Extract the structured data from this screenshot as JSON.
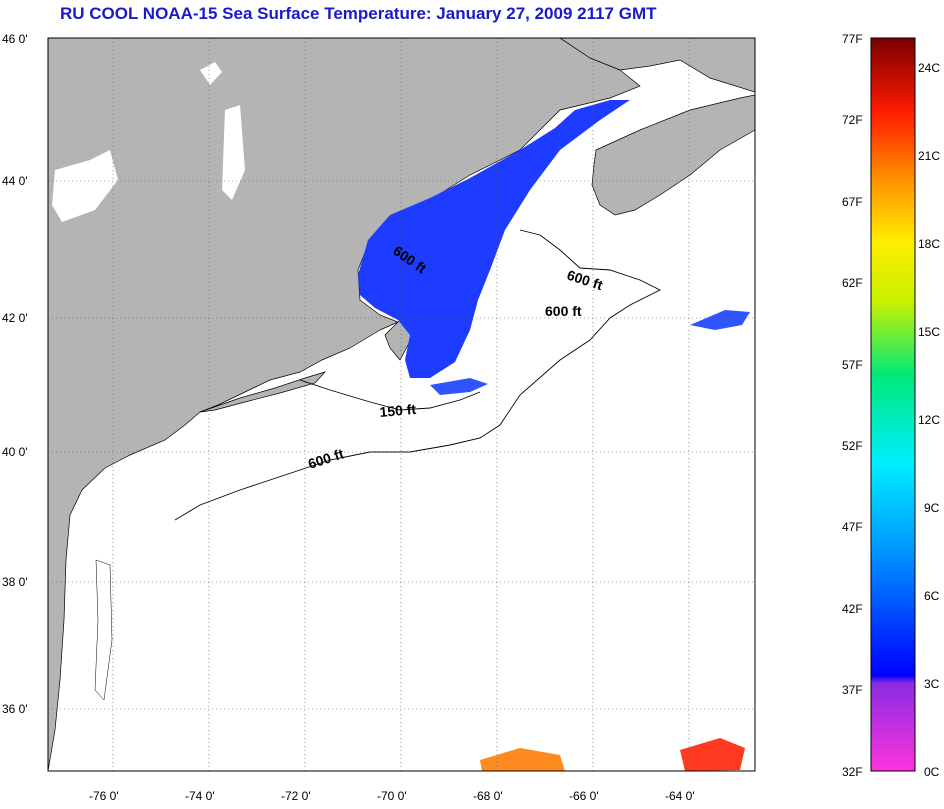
{
  "title": "RU COOL  NOAA-15  Sea Surface Temperature:  January 27, 2009 2117 GMT",
  "map": {
    "lat_labels": [
      "46 0'",
      "44 0'",
      "42 0'",
      "40 0'",
      "38 0'",
      "36 0'"
    ],
    "lon_labels": [
      "-76 0'",
      "-74 0'",
      "-72 0'",
      "-70 0'",
      "-68 0'",
      "-66 0'",
      "-64 0'"
    ],
    "contour_labels": [
      "600 ft",
      "600 ft",
      "600 ft",
      "150 ft",
      "600 ft"
    ],
    "colors": {
      "land": "#b4b4b4",
      "ocean": "#ffffff",
      "cold_water": "#1e3cff"
    }
  },
  "colorbar": {
    "fahrenheit": [
      "77F",
      "72F",
      "67F",
      "62F",
      "57F",
      "52F",
      "47F",
      "42F",
      "37F",
      "32F"
    ],
    "celsius": [
      "24C",
      "21C",
      "18C",
      "15C",
      "12C",
      "9C",
      "6C",
      "3C",
      "0C"
    ]
  }
}
